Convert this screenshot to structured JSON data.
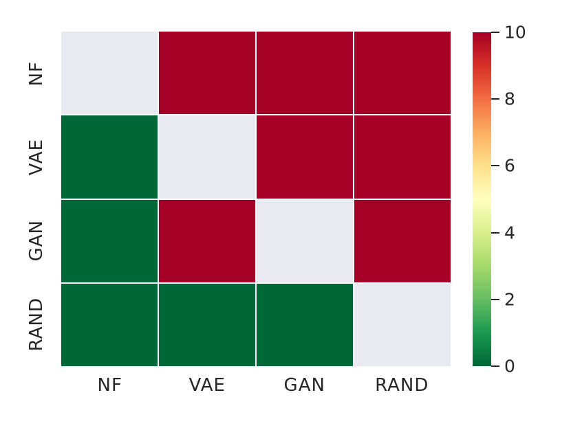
{
  "figure": {
    "background_color": "#ffffff",
    "text_color": "#262626"
  },
  "chart_data": {
    "type": "heatmap",
    "x_categories": [
      "NF",
      "VAE",
      "GAN",
      "RAND"
    ],
    "y_categories": [
      "NF",
      "VAE",
      "GAN",
      "RAND"
    ],
    "matrix": [
      [
        null,
        10,
        10,
        10
      ],
      [
        0,
        null,
        10,
        10
      ],
      [
        0,
        10,
        null,
        10
      ],
      [
        0,
        0,
        0,
        null
      ]
    ],
    "masked_diagonal": true,
    "vmin": 0,
    "vmax": 10,
    "colormap": "RdYlGn_r",
    "colorbar": {
      "ticks": [
        0,
        2,
        4,
        6,
        8,
        10
      ],
      "tick_labels": [
        "0",
        "2",
        "4",
        "6",
        "8",
        "10"
      ],
      "position": "right",
      "gradient_top_to_bottom": [
        "#a50026",
        "#d73027",
        "#f46d43",
        "#fdae61",
        "#fee08b",
        "#ffffbf",
        "#d9ef8b",
        "#a6d96a",
        "#66bd63",
        "#1a9850",
        "#006837"
      ]
    },
    "colors": {
      "high_value": "#a50026",
      "low_value": "#006837",
      "masked_cell": "#e9e9f2",
      "cell_gap": "#ffffff"
    },
    "grid_on": false,
    "title": "",
    "xlabel": "",
    "ylabel": ""
  }
}
